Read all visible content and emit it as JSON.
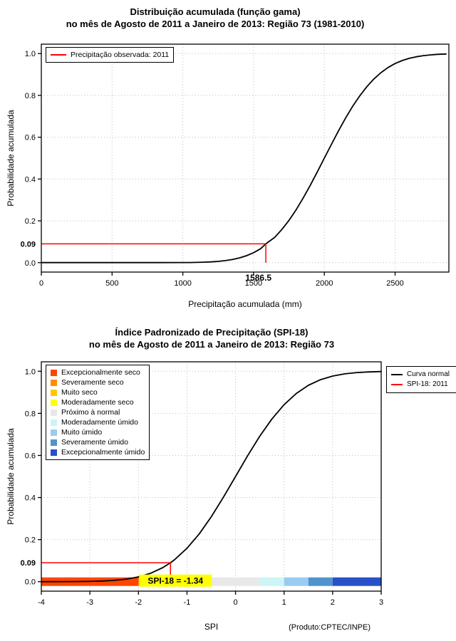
{
  "chart_data": [
    {
      "type": "line",
      "title_line1": "Distribuição acumulada (função gama)",
      "title_line2": "no mês de Agosto de 2011 a Janeiro de 2013: Região 73 (1981-2010)",
      "xlabel": "Precipitação acumulada (mm)",
      "ylabel": "Probabilidade acumulada",
      "xlim": [
        0,
        2880
      ],
      "ylim": [
        -0.045,
        1.045
      ],
      "xticks": [
        0,
        500,
        1000,
        1500,
        2000,
        2500
      ],
      "xtick_labels": [
        "0",
        "500",
        "1000",
        "1500",
        "2000",
        "2500"
      ],
      "yticks": [
        0,
        0.2,
        0.4,
        0.6,
        0.8,
        1
      ],
      "ytick_labels": [
        "0.0",
        "0.2",
        "0.4",
        "0.6",
        "0.8",
        "1.0"
      ],
      "grid": true,
      "legend": {
        "position": "top-left",
        "items": [
          {
            "label": "Precipitação observada: 2011",
            "color": "#FF0000"
          }
        ]
      },
      "series": [
        {
          "name": "Distribuição gama acumulada (1981-2010)",
          "color": "#000000",
          "x": [
            0,
            200,
            400,
            600,
            800,
            1000,
            1050,
            1100,
            1150,
            1200,
            1250,
            1300,
            1350,
            1400,
            1450,
            1500,
            1550,
            1586.5,
            1650,
            1700,
            1750,
            1800,
            1850,
            1900,
            1950,
            2000,
            2050,
            2100,
            2150,
            2200,
            2250,
            2300,
            2350,
            2400,
            2450,
            2500,
            2550,
            2600,
            2650,
            2700,
            2750,
            2800,
            2860
          ],
          "y": [
            0.0002,
            0.0002,
            0.0002,
            0.0003,
            0.0004,
            0.0006,
            0.0008,
            0.0013,
            0.0023,
            0.0038,
            0.0062,
            0.0098,
            0.0151,
            0.0228,
            0.0334,
            0.0478,
            0.0668,
            0.09,
            0.1217,
            0.1587,
            0.2024,
            0.2525,
            0.3085,
            0.3694,
            0.4338,
            0.5,
            0.5662,
            0.6306,
            0.6915,
            0.7475,
            0.7976,
            0.8413,
            0.8783,
            0.9088,
            0.9332,
            0.9522,
            0.9666,
            0.9772,
            0.9848,
            0.9901,
            0.9936,
            0.9962,
            0.9979
          ]
        }
      ],
      "marker": {
        "x": 1586.5,
        "y": 0.09,
        "x_label": "1586.5",
        "y_label": "0.09",
        "color": "#FF0000"
      }
    },
    {
      "type": "line",
      "title_line1": "Índice Padronizado de Precipitação (SPI-18)",
      "title_line2": "no mês de Agosto de 2011 a Janeiro de 2013: Região 73",
      "xlabel": "SPI",
      "ylabel": "Probabilidade acumulada",
      "xlim": [
        -4,
        3
      ],
      "ylim": [
        -0.045,
        1.045
      ],
      "xticks": [
        -4,
        -3,
        -2,
        -1,
        0,
        1,
        2,
        3
      ],
      "xtick_labels": [
        "-4",
        "-3",
        "-2",
        "-1",
        "0",
        "1",
        "2",
        "3"
      ],
      "yticks": [
        0,
        0.2,
        0.4,
        0.6,
        0.8,
        1
      ],
      "ytick_labels": [
        "0.0",
        "0.2",
        "0.4",
        "0.6",
        "0.8",
        "1.0"
      ],
      "grid": true,
      "categories": [
        {
          "label": "Excepcionalmente seco",
          "color": "#FF4500",
          "from": -4,
          "to": -2
        },
        {
          "label": "Severamente seco",
          "color": "#FF8C00",
          "from": -2,
          "to": -1.5
        },
        {
          "label": "Muito seco",
          "color": "#FFC800",
          "from": -1.5,
          "to": -1
        },
        {
          "label": "Moderadamente seco",
          "color": "#FFFF00",
          "from": -1,
          "to": -0.5
        },
        {
          "label": "Próximo à normal",
          "color": "#E8E8E8",
          "from": -0.5,
          "to": 0.5
        },
        {
          "label": "Moderadamente úmido",
          "color": "#CCF5F5",
          "from": 0.5,
          "to": 1
        },
        {
          "label": "Muito úmido",
          "color": "#99CCF0",
          "from": 1,
          "to": 1.5
        },
        {
          "label": "Severamente úmido",
          "color": "#4F94CD",
          "from": 1.5,
          "to": 2
        },
        {
          "label": "Excepcionalmente úmido",
          "color": "#2850C8",
          "from": 2,
          "to": 3
        }
      ],
      "legend_right": {
        "items": [
          {
            "label": "Curva normal",
            "color": "#000000"
          },
          {
            "label": "SPI-18: 2011",
            "color": "#FF0000"
          }
        ]
      },
      "series": [
        {
          "name": "Curva normal",
          "color": "#000000",
          "x": [
            -4,
            -3.75,
            -3.5,
            -3.25,
            -3,
            -2.75,
            -2.5,
            -2.25,
            -2,
            -1.75,
            -1.5,
            -1.34,
            -1.25,
            -1,
            -0.75,
            -0.5,
            -0.25,
            0,
            0.25,
            0.5,
            0.75,
            1,
            1.25,
            1.5,
            1.75,
            2,
            2.25,
            2.5,
            2.75,
            3
          ],
          "y": [
            0.0001,
            0.0001,
            0.0002,
            0.0006,
            0.0013,
            0.003,
            0.0062,
            0.0122,
            0.0228,
            0.0401,
            0.0668,
            0.0901,
            0.1056,
            0.1587,
            0.2266,
            0.3085,
            0.4013,
            0.5,
            0.5987,
            0.6915,
            0.7734,
            0.8413,
            0.8944,
            0.9332,
            0.9599,
            0.9772,
            0.9878,
            0.9938,
            0.997,
            0.9987
          ]
        }
      ],
      "marker": {
        "x": -1.34,
        "y": 0.09,
        "y_label": "0.09",
        "color": "#FF0000",
        "bar_label": "SPI-18 = -1.34",
        "bar_label_bg": "#FFFF00"
      },
      "footer": "(Produto:CPTEC/INPE)"
    }
  ]
}
